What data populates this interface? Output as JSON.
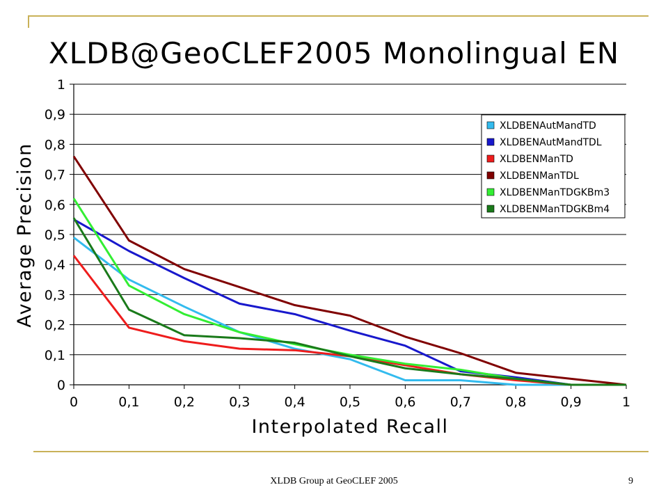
{
  "slide": {
    "title": "XLDB@GeoCLEF2005 Monolingual EN",
    "footer": "XLDB Group at GeoCLEF 2005",
    "page_number": "9",
    "accent_color": "#c9b158"
  },
  "chart_data": {
    "type": "line",
    "title": "XLDB@GeoCLEF2005 Monolingual EN",
    "xlabel": "Interpolated Recall",
    "ylabel": "Average Precision",
    "xlim": [
      0,
      1
    ],
    "ylim": [
      0,
      1
    ],
    "x": [
      0,
      0.1,
      0.2,
      0.3,
      0.4,
      0.5,
      0.6,
      0.7,
      0.8,
      0.9,
      1
    ],
    "x_tick_labels": [
      "0",
      "0,1",
      "0,2",
      "0,3",
      "0,4",
      "0,5",
      "0,6",
      "0,7",
      "0,8",
      "0,9",
      "1"
    ],
    "y_tick_labels": [
      "0",
      "0,1",
      "0,2",
      "0,3",
      "0,4",
      "0,5",
      "0,6",
      "0,7",
      "0,8",
      "0,9",
      "1"
    ],
    "y_ticks": [
      0,
      0.1,
      0.2,
      0.3,
      0.4,
      0.5,
      0.6,
      0.7,
      0.8,
      0.9,
      1
    ],
    "grid": "horizontal",
    "legend_position": "top-right",
    "series": [
      {
        "name": "XLDBENAutMandTD",
        "color": "#33bbee",
        "values": [
          0.49,
          0.35,
          0.26,
          0.175,
          0.12,
          0.085,
          0.015,
          0.015,
          0.0,
          0.0,
          0.0
        ]
      },
      {
        "name": "XLDBENAutMandTDL",
        "color": "#1818cc",
        "values": [
          0.55,
          0.445,
          0.355,
          0.27,
          0.235,
          0.18,
          0.13,
          0.045,
          0.025,
          0.0,
          0.0
        ]
      },
      {
        "name": "XLDBENManTD",
        "color": "#ee1c1c",
        "values": [
          0.43,
          0.19,
          0.145,
          0.12,
          0.115,
          0.095,
          0.065,
          0.035,
          0.015,
          0.0,
          0.0
        ]
      },
      {
        "name": "XLDBENManTDL",
        "color": "#800000",
        "values": [
          0.76,
          0.48,
          0.385,
          0.325,
          0.265,
          0.23,
          0.16,
          0.105,
          0.04,
          0.02,
          0.0
        ]
      },
      {
        "name": "XLDBENManTDGKBm3",
        "color": "#33ee33",
        "values": [
          0.62,
          0.33,
          0.235,
          0.175,
          0.135,
          0.1,
          0.07,
          0.05,
          0.02,
          0.0,
          0.0
        ]
      },
      {
        "name": "XLDBENManTDGKBm4",
        "color": "#1a7a1a",
        "values": [
          0.555,
          0.25,
          0.165,
          0.155,
          0.14,
          0.095,
          0.055,
          0.035,
          0.02,
          0.0,
          0.0
        ]
      }
    ]
  }
}
